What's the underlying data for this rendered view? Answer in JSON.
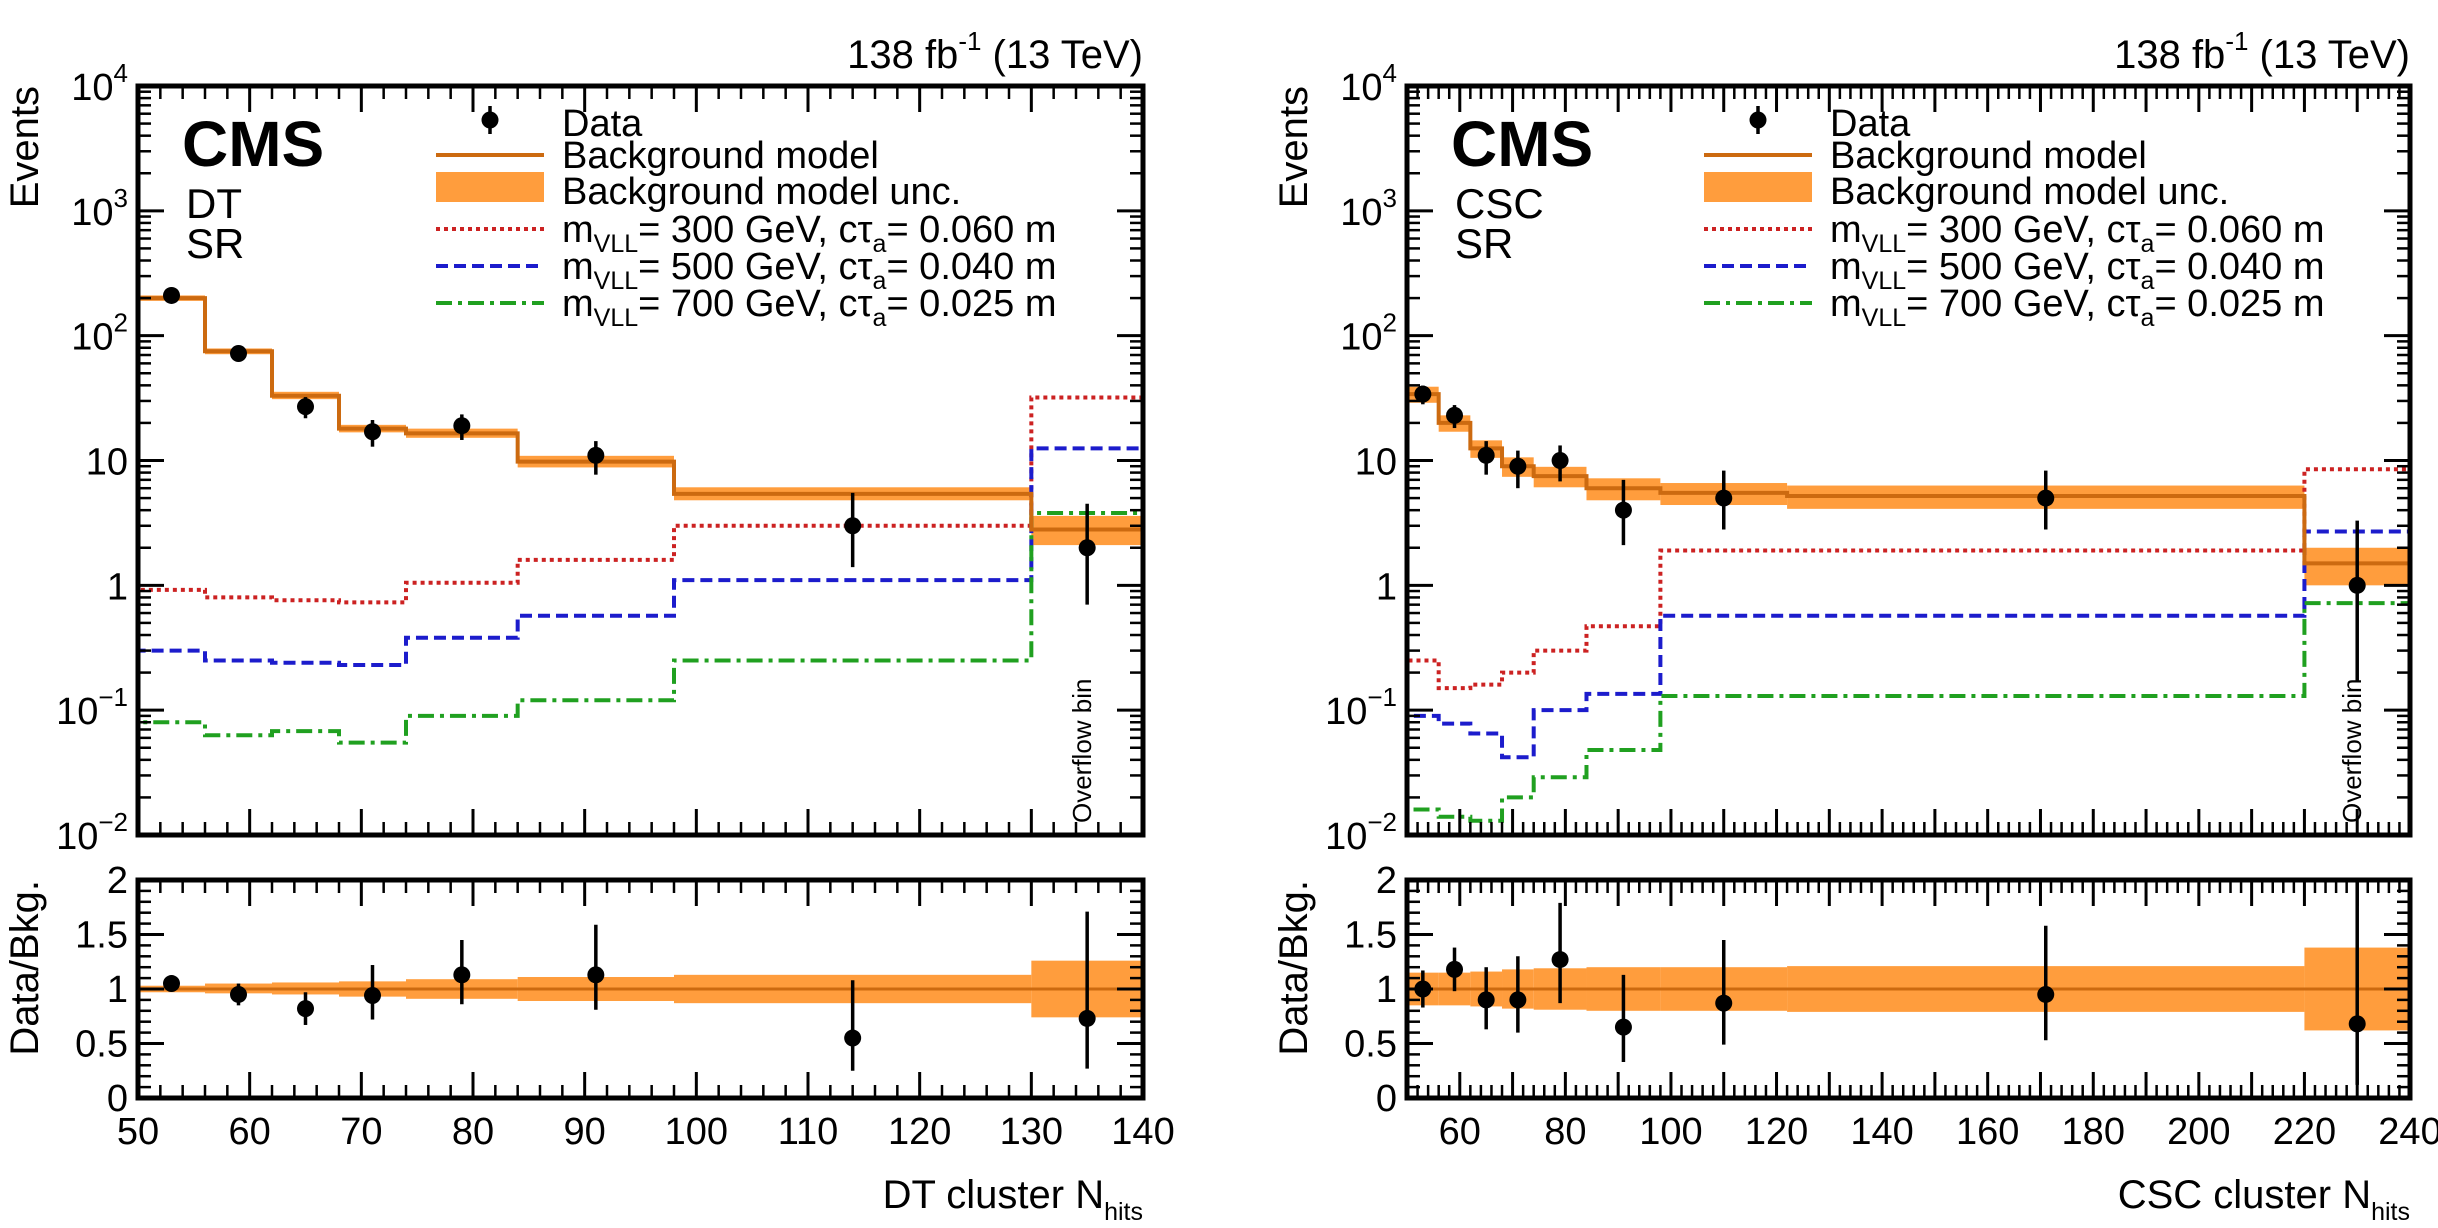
{
  "chart_data": [
    {
      "type": "step-histogram",
      "panel": "left",
      "experiment": "CMS",
      "tags": [
        "DT",
        "SR"
      ],
      "lumi_label": "138 fb",
      "lumi_sup": "-1",
      "energy_label": " (13 TeV)",
      "xlabel": "DT cluster N",
      "xlabel_sub": "hits",
      "ylabel": "Events",
      "ratio_ylabel": "Data/Bkg.",
      "overflow_label": "Overflow bin",
      "xlim": [
        50,
        140
      ],
      "x_ticks": [
        50,
        60,
        70,
        80,
        90,
        100,
        110,
        120,
        130,
        140
      ],
      "ylim": [
        0.01,
        10000
      ],
      "y_scale": "log",
      "y_tick_labels": [
        {
          "v": 10000,
          "base": "10",
          "sup": "4"
        },
        {
          "v": 1000,
          "base": "10",
          "sup": "3"
        },
        {
          "v": 100,
          "base": "10",
          "sup": "2"
        },
        {
          "v": 10,
          "base": "10",
          "sup": ""
        },
        {
          "v": 1,
          "base": "1",
          "sup": ""
        },
        {
          "v": 0.1,
          "base": "10",
          "sup": "−1"
        },
        {
          "v": 0.01,
          "base": "10",
          "sup": "−2"
        }
      ],
      "ratio_ylim": [
        0,
        2
      ],
      "ratio_ticks": [
        "0",
        "0.5",
        "1",
        "1.5",
        "2"
      ],
      "bin_edges": [
        50,
        56,
        62,
        68,
        74,
        84,
        98,
        130,
        140
      ],
      "background": {
        "name": "Background model",
        "values": [
          200,
          75,
          33,
          18,
          16.5,
          9.8,
          5.4,
          2.8
        ],
        "unc_low": [
          190,
          71,
          31,
          16.8,
          15.2,
          8.8,
          4.8,
          2.1
        ],
        "unc_high": [
          210,
          79,
          35.5,
          19.3,
          18,
          10.9,
          6.1,
          3.6
        ],
        "unc_name": "Background model unc."
      },
      "signals": [
        {
          "name_pre": "m",
          "name_sub": "VLL",
          "name_mid": "= 300 GeV, cτ",
          "name_sub2": "a",
          "name_post": "= 0.060 m",
          "style": "dotted",
          "values": [
            0.92,
            0.8,
            0.76,
            0.73,
            1.05,
            1.6,
            3.0,
            32
          ]
        },
        {
          "name_pre": "m",
          "name_sub": "VLL",
          "name_mid": "= 500 GeV, cτ",
          "name_sub2": "a",
          "name_post": "= 0.040 m",
          "style": "dashed",
          "values": [
            0.3,
            0.25,
            0.24,
            0.23,
            0.38,
            0.57,
            1.1,
            12.5
          ]
        },
        {
          "name_pre": "m",
          "name_sub": "VLL",
          "name_mid": "= 700 GeV, cτ",
          "name_sub2": "a",
          "name_post": "= 0.025 m",
          "style": "dashdot",
          "values": [
            0.08,
            0.063,
            0.068,
            0.055,
            0.09,
            0.12,
            0.25,
            3.8
          ]
        }
      ],
      "data": {
        "name": "Data",
        "x": [
          53,
          59,
          65,
          71,
          79,
          91,
          114,
          135
        ],
        "y": [
          210,
          72,
          27,
          17,
          19,
          11,
          3,
          2
        ],
        "y_err_low": [
          15,
          8.5,
          5.2,
          4.1,
          4.4,
          3.3,
          1.6,
          1.3
        ],
        "y_err_high": [
          15,
          8.5,
          5.2,
          4.1,
          4.4,
          3.3,
          2.5,
          2.5
        ]
      },
      "ratio": {
        "unc_low": [
          0.97,
          0.96,
          0.95,
          0.93,
          0.91,
          0.89,
          0.87,
          0.74
        ],
        "unc_high": [
          1.03,
          1.05,
          1.06,
          1.07,
          1.09,
          1.11,
          1.13,
          1.26
        ],
        "x": [
          53,
          59,
          65,
          71,
          79,
          91,
          114,
          135
        ],
        "y": [
          1.05,
          0.95,
          0.82,
          0.94,
          1.13,
          1.13,
          0.55,
          0.73
        ],
        "y_err_low": [
          0.05,
          0.1,
          0.15,
          0.22,
          0.27,
          0.32,
          0.3,
          0.46
        ],
        "y_err_high": [
          0.05,
          0.1,
          0.15,
          0.28,
          0.32,
          0.46,
          0.53,
          0.98
        ]
      }
    },
    {
      "type": "step-histogram",
      "panel": "right",
      "experiment": "CMS",
      "tags": [
        "CSC",
        "SR"
      ],
      "lumi_label": "138 fb",
      "lumi_sup": "-1",
      "energy_label": " (13 TeV)",
      "xlabel": "CSC cluster N",
      "xlabel_sub": "hits",
      "ylabel": "Events",
      "ratio_ylabel": "Data/Bkg.",
      "overflow_label": "Overflow bin",
      "xlim": [
        50,
        240
      ],
      "x_ticks": [
        60,
        80,
        100,
        120,
        140,
        160,
        180,
        200,
        220,
        240
      ],
      "ylim": [
        0.01,
        10000
      ],
      "y_scale": "log",
      "y_tick_labels": [
        {
          "v": 10000,
          "base": "10",
          "sup": "4"
        },
        {
          "v": 1000,
          "base": "10",
          "sup": "3"
        },
        {
          "v": 100,
          "base": "10",
          "sup": "2"
        },
        {
          "v": 10,
          "base": "10",
          "sup": ""
        },
        {
          "v": 1,
          "base": "1",
          "sup": ""
        },
        {
          "v": 0.1,
          "base": "10",
          "sup": "−1"
        },
        {
          "v": 0.01,
          "base": "10",
          "sup": "−2"
        }
      ],
      "ratio_ylim": [
        0,
        2
      ],
      "ratio_ticks": [
        "0",
        "0.5",
        "1",
        "1.5",
        "2"
      ],
      "bin_edges": [
        50,
        56,
        62,
        68,
        74,
        84,
        98,
        122,
        220,
        240
      ],
      "background": {
        "name": "Background model",
        "values": [
          34,
          20,
          12.5,
          9,
          7.5,
          6,
          5.5,
          5.2,
          1.5
        ],
        "unc_low": [
          29,
          17,
          10.5,
          7.4,
          6.1,
          4.8,
          4.4,
          4.1,
          1.0
        ],
        "unc_high": [
          39,
          23,
          14.5,
          10.6,
          8.9,
          7.2,
          6.6,
          6.3,
          2.0
        ],
        "unc_name": "Background model unc."
      },
      "signals": [
        {
          "name_pre": "m",
          "name_sub": "VLL",
          "name_mid": "= 300 GeV, cτ",
          "name_sub2": "a",
          "name_post": "= 0.060 m",
          "style": "dotted",
          "values": [
            0.25,
            0.15,
            0.16,
            0.2,
            0.3,
            0.47,
            1.9,
            1.9,
            8.5
          ]
        },
        {
          "name_pre": "m",
          "name_sub": "VLL",
          "name_mid": "= 500 GeV, cτ",
          "name_sub2": "a",
          "name_post": "= 0.040 m",
          "style": "dashed",
          "values": [
            0.09,
            0.078,
            0.065,
            0.042,
            0.1,
            0.135,
            0.57,
            0.57,
            2.7
          ]
        },
        {
          "name_pre": "m",
          "name_sub": "VLL",
          "name_mid": "= 700 GeV, cτ",
          "name_sub2": "a",
          "name_post": "= 0.025 m",
          "style": "dashdot",
          "values": [
            0.016,
            0.014,
            0.013,
            0.02,
            0.029,
            0.048,
            0.13,
            0.13,
            0.72
          ]
        }
      ],
      "data": {
        "name": "Data",
        "x": [
          53,
          59,
          65,
          71,
          79,
          91,
          110,
          171,
          230
        ],
        "y": [
          34,
          23,
          11,
          9,
          10,
          4,
          5,
          5,
          1
        ],
        "y_err_low": [
          5.8,
          4.8,
          3.3,
          3.0,
          3.2,
          1.9,
          2.2,
          2.2,
          0.83
        ],
        "y_err_high": [
          5.8,
          4.8,
          3.3,
          3.0,
          3.2,
          3.0,
          3.3,
          3.3,
          2.3
        ]
      },
      "ratio": {
        "unc_low": [
          0.85,
          0.85,
          0.84,
          0.82,
          0.81,
          0.8,
          0.8,
          0.79,
          0.62
        ],
        "unc_high": [
          1.15,
          1.15,
          1.16,
          1.18,
          1.19,
          1.2,
          1.2,
          1.21,
          1.38
        ],
        "x": [
          53,
          59,
          65,
          71,
          79,
          91,
          110,
          171,
          230
        ],
        "y": [
          1.0,
          1.18,
          0.9,
          0.9,
          1.27,
          0.65,
          0.87,
          0.95,
          0.68
        ],
        "y_err_low": [
          0.17,
          0.2,
          0.27,
          0.3,
          0.4,
          0.32,
          0.38,
          0.42,
          0.56
        ],
        "y_err_high": [
          0.17,
          0.2,
          0.3,
          0.4,
          0.52,
          0.48,
          0.58,
          0.63,
          1.32
        ]
      }
    }
  ],
  "colors": {
    "background_line": "#cc6a10",
    "background_unc": "#ff9d3d",
    "signal_300": "#cc2222",
    "signal_500": "#1c1ccc",
    "signal_700": "#20a020",
    "data": "#000000"
  }
}
